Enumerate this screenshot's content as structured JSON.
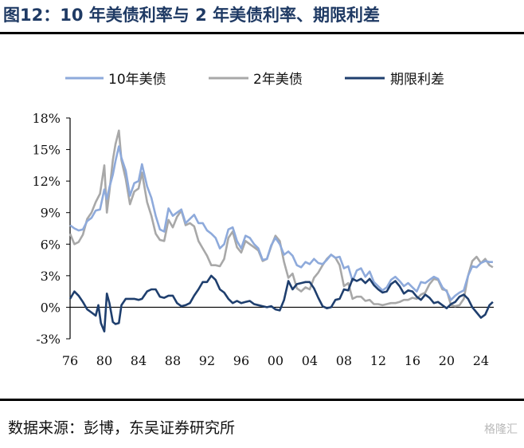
{
  "figure": {
    "title": "图12：10 年美债利率与 2 年美债利率、期限利差",
    "source": "数据来源：彭博，东吴证券研究所",
    "watermark": "格隆汇"
  },
  "chart_data": {
    "type": "line",
    "title": "",
    "xlabel": "",
    "ylabel": "",
    "x_range": [
      1976,
      2025.5
    ],
    "ylim": [
      -3,
      18
    ],
    "y_ticks": [
      "18%",
      "15%",
      "12%",
      "9%",
      "6%",
      "3%",
      "0%",
      "-3%"
    ],
    "y_tick_values": [
      18,
      15,
      12,
      9,
      6,
      3,
      0,
      -3
    ],
    "x_ticks": [
      "76",
      "80",
      "84",
      "88",
      "92",
      "96",
      "00",
      "04",
      "08",
      "12",
      "16",
      "20",
      "24"
    ],
    "x_tick_values": [
      1976,
      1980,
      1984,
      1988,
      1992,
      1996,
      2000,
      2004,
      2008,
      2012,
      2016,
      2020,
      2024
    ],
    "legend_position": "top",
    "grid": false,
    "series": [
      {
        "name": "10年美债",
        "color": "#8eaadb",
        "x": [
          1976,
          1976.5,
          1977,
          1977.5,
          1978,
          1978.5,
          1979,
          1979.5,
          1980,
          1980.3,
          1980.6,
          1981,
          1981.3,
          1981.7,
          1982,
          1982.5,
          1983,
          1983.5,
          1984,
          1984.4,
          1985,
          1985.5,
          1986,
          1986.5,
          1987,
          1987.5,
          1988,
          1988.5,
          1989,
          1989.5,
          1990,
          1990.5,
          1991,
          1991.5,
          1992,
          1992.5,
          1993,
          1993.5,
          1994,
          1994.5,
          1995,
          1995.5,
          1996,
          1996.5,
          1997,
          1997.5,
          1998,
          1998.5,
          1999,
          1999.5,
          2000,
          2000.5,
          2001,
          2001.5,
          2002,
          2002.5,
          2003,
          2003.5,
          2004,
          2004.5,
          2005,
          2005.5,
          2006,
          2006.5,
          2007,
          2007.5,
          2008,
          2008.5,
          2009,
          2009.5,
          2010,
          2010.5,
          2011,
          2011.5,
          2012,
          2012.5,
          2013,
          2013.5,
          2014,
          2014.5,
          2015,
          2015.5,
          2016,
          2016.5,
          2017,
          2017.5,
          2018,
          2018.5,
          2019,
          2019.5,
          2020,
          2020.5,
          2021,
          2021.5,
          2022,
          2022.5,
          2023,
          2023.5,
          2024,
          2024.5,
          2025,
          2025.4
        ],
        "y": [
          7.8,
          7.5,
          7.3,
          7.4,
          8.2,
          8.5,
          9.2,
          9.3,
          11.2,
          10.3,
          11.4,
          12.6,
          13.9,
          15.3,
          14.2,
          13.0,
          10.6,
          11.8,
          12.0,
          13.6,
          11.5,
          10.4,
          8.7,
          7.4,
          7.2,
          9.4,
          8.7,
          9.0,
          9.3,
          8.0,
          8.4,
          8.8,
          8.0,
          8.0,
          7.3,
          7.0,
          6.6,
          5.6,
          6.0,
          7.4,
          7.6,
          6.3,
          5.6,
          6.8,
          6.6,
          6.0,
          5.6,
          4.5,
          4.6,
          5.9,
          6.6,
          6.0,
          5.0,
          5.3,
          4.9,
          4.0,
          3.8,
          4.3,
          4.1,
          4.6,
          4.2,
          4.1,
          4.5,
          5.0,
          4.7,
          4.8,
          3.7,
          3.9,
          2.5,
          3.5,
          3.7,
          2.9,
          3.4,
          2.4,
          2.0,
          1.6,
          1.9,
          2.6,
          2.9,
          2.5,
          2.0,
          2.3,
          1.9,
          1.5,
          2.4,
          2.3,
          2.6,
          2.9,
          2.7,
          1.9,
          1.5,
          0.7,
          1.1,
          1.4,
          1.6,
          3.0,
          3.9,
          3.8,
          4.2,
          4.4,
          4.3,
          4.3
        ]
      },
      {
        "name": "2年美债",
        "color": "#a8a8a8",
        "x": [
          1976,
          1976.5,
          1977,
          1977.5,
          1978,
          1978.5,
          1979,
          1979.5,
          1980,
          1980.3,
          1980.6,
          1981,
          1981.3,
          1981.7,
          1982,
          1982.5,
          1983,
          1983.5,
          1984,
          1984.4,
          1985,
          1985.5,
          1986,
          1986.5,
          1987,
          1987.5,
          1988,
          1988.5,
          1989,
          1989.5,
          1990,
          1990.5,
          1991,
          1991.5,
          1992,
          1992.5,
          1993,
          1993.5,
          1994,
          1994.5,
          1995,
          1995.5,
          1996,
          1996.5,
          1997,
          1997.5,
          1998,
          1998.5,
          1999,
          1999.5,
          2000,
          2000.5,
          2001,
          2001.5,
          2002,
          2002.5,
          2003,
          2003.5,
          2004,
          2004.5,
          2005,
          2005.5,
          2006,
          2006.5,
          2007,
          2007.5,
          2008,
          2008.5,
          2009,
          2009.5,
          2010,
          2010.5,
          2011,
          2011.5,
          2012,
          2012.5,
          2013,
          2013.5,
          2014,
          2014.5,
          2015,
          2015.5,
          2016,
          2016.5,
          2017,
          2017.5,
          2018,
          2018.5,
          2019,
          2019.5,
          2020,
          2020.5,
          2021,
          2021.5,
          2022,
          2022.5,
          2023,
          2023.5,
          2024,
          2024.5,
          2025,
          2025.4
        ],
        "y": [
          7.0,
          6.0,
          6.2,
          6.9,
          8.4,
          9.0,
          10.0,
          10.8,
          13.5,
          9.0,
          11.0,
          14.0,
          15.5,
          16.8,
          14.0,
          12.2,
          9.8,
          11.0,
          11.3,
          12.8,
          10.0,
          8.7,
          7.0,
          6.4,
          6.3,
          8.3,
          7.6,
          8.6,
          9.2,
          7.8,
          8.0,
          7.7,
          6.3,
          5.6,
          4.9,
          4.0,
          4.0,
          3.9,
          4.6,
          6.6,
          7.2,
          5.7,
          5.2,
          6.3,
          6.0,
          5.7,
          5.4,
          4.4,
          4.6,
          5.8,
          6.8,
          6.3,
          4.3,
          2.8,
          3.2,
          1.8,
          1.5,
          1.9,
          1.7,
          2.8,
          3.3,
          4.0,
          4.6,
          5.0,
          4.7,
          4.0,
          2.0,
          2.3,
          0.8,
          1.0,
          1.0,
          0.6,
          0.7,
          0.3,
          0.3,
          0.2,
          0.3,
          0.4,
          0.4,
          0.5,
          0.7,
          0.7,
          0.9,
          0.8,
          1.2,
          1.4,
          2.2,
          2.7,
          2.6,
          1.7,
          1.6,
          0.2,
          0.1,
          0.2,
          0.8,
          3.0,
          4.4,
          4.8,
          4.2,
          4.6,
          4.0,
          3.8
        ]
      },
      {
        "name": "期限利差",
        "color": "#1f3f6e",
        "x": [
          1976,
          1976.5,
          1977,
          1977.5,
          1978,
          1978.5,
          1979,
          1979.3,
          1979.6,
          1980,
          1980.3,
          1980.6,
          1981,
          1981.3,
          1981.7,
          1982,
          1982.5,
          1983,
          1983.5,
          1984,
          1984.4,
          1985,
          1985.5,
          1986,
          1986.5,
          1987,
          1987.5,
          1988,
          1988.5,
          1989,
          1989.5,
          1990,
          1990.5,
          1991,
          1991.5,
          1992,
          1992.5,
          1993,
          1993.5,
          1994,
          1994.5,
          1995,
          1995.5,
          1996,
          1996.5,
          1997,
          1997.5,
          1998,
          1998.5,
          1999,
          1999.5,
          2000,
          2000.5,
          2001,
          2001.5,
          2002,
          2002.5,
          2003,
          2003.5,
          2004,
          2004.5,
          2005,
          2005.5,
          2006,
          2006.5,
          2007,
          2007.5,
          2008,
          2008.5,
          2009,
          2009.5,
          2010,
          2010.5,
          2011,
          2011.5,
          2012,
          2012.5,
          2013,
          2013.5,
          2014,
          2014.5,
          2015,
          2015.5,
          2016,
          2016.5,
          2017,
          2017.5,
          2018,
          2018.5,
          2019,
          2019.5,
          2020,
          2020.5,
          2021,
          2021.5,
          2022,
          2022.5,
          2023,
          2023.5,
          2024,
          2024.5,
          2025,
          2025.4
        ],
        "y": [
          0.8,
          1.5,
          1.1,
          0.5,
          -0.2,
          -0.5,
          -0.8,
          0.2,
          -1.5,
          -2.3,
          1.3,
          0.4,
          -1.4,
          -1.6,
          -1.5,
          0.2,
          0.8,
          0.8,
          0.8,
          0.7,
          0.8,
          1.5,
          1.7,
          1.7,
          1.0,
          0.9,
          1.1,
          1.1,
          0.4,
          0.1,
          0.2,
          0.4,
          1.1,
          1.7,
          2.4,
          2.4,
          3.0,
          2.6,
          1.7,
          1.4,
          0.8,
          0.4,
          0.6,
          0.4,
          0.5,
          0.6,
          0.3,
          0.2,
          0.1,
          0.0,
          0.1,
          -0.2,
          -0.3,
          0.7,
          2.5,
          1.7,
          2.2,
          2.3,
          2.4,
          2.4,
          1.8,
          0.9,
          0.1,
          -0.1,
          0.0,
          0.7,
          0.8,
          1.7,
          1.6,
          2.7,
          2.5,
          2.7,
          2.3,
          2.7,
          2.1,
          1.7,
          1.4,
          1.5,
          2.2,
          2.5,
          2.0,
          1.3,
          1.6,
          1.5,
          1.0,
          0.7,
          1.2,
          0.9,
          0.4,
          0.5,
          0.2,
          -0.1,
          0.3,
          0.5,
          1.0,
          1.2,
          0.8,
          0.0,
          -0.5,
          -1.0,
          -0.7,
          0.2,
          0.5
        ]
      }
    ]
  }
}
